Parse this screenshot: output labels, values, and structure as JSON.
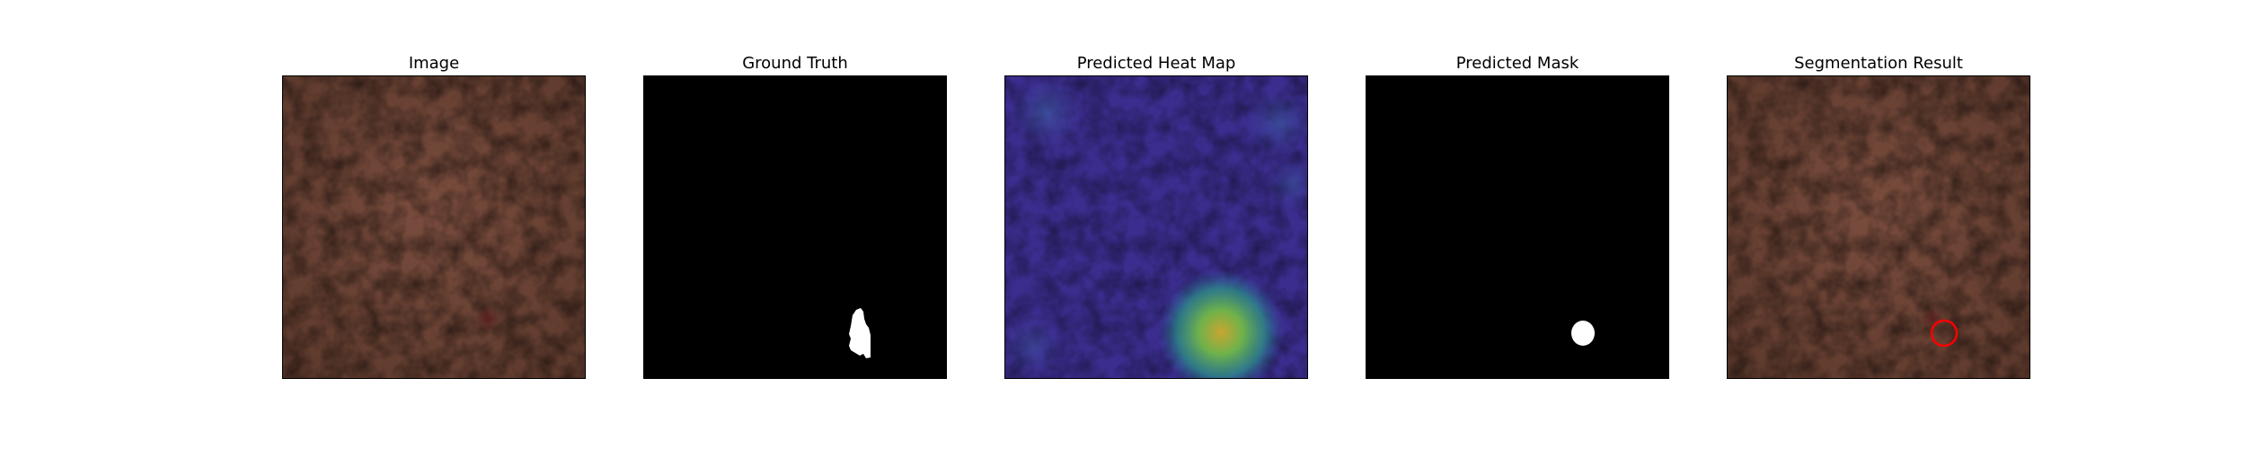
{
  "panels": [
    {
      "title": "Image"
    },
    {
      "title": "Ground Truth"
    },
    {
      "title": "Predicted Heat Map"
    },
    {
      "title": "Predicted Mask"
    },
    {
      "title": "Segmentation Result"
    }
  ],
  "colors": {
    "leather": "#6e4537",
    "mask_background": "#000000",
    "mask_foreground": "#ffffff",
    "heatmap_base": "#3a2a8c",
    "result_outline": "#ff0000"
  }
}
